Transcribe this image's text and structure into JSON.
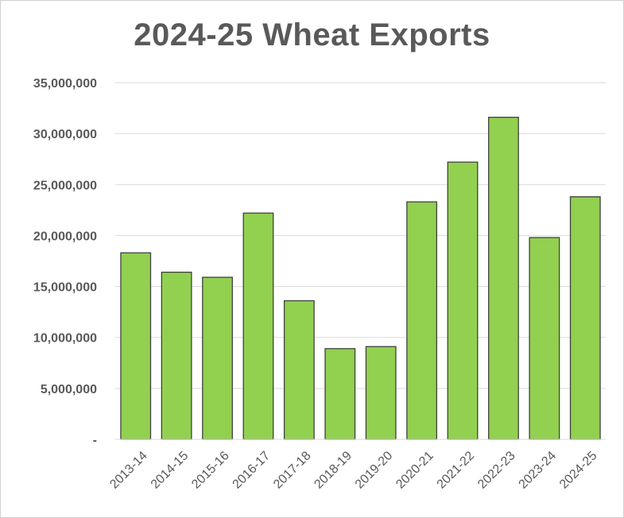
{
  "chart_data": {
    "type": "bar",
    "title": "2024-25 Wheat Exports",
    "xlabel": "",
    "ylabel": "",
    "categories": [
      "2013-14",
      "2014-15",
      "2015-16",
      "2016-17",
      "2017-18",
      "2018-19",
      "2019-20",
      "2020-21",
      "2021-22",
      "2022-23",
      "2023-24",
      "2024-25"
    ],
    "values": [
      18300000,
      16400000,
      15900000,
      22200000,
      13600000,
      8900000,
      9100000,
      23300000,
      27200000,
      31600000,
      19800000,
      23800000
    ],
    "ylim": [
      0,
      35000000
    ],
    "yticks": [
      0,
      5000000,
      10000000,
      15000000,
      20000000,
      25000000,
      30000000,
      35000000
    ],
    "ytick_labels": [
      "-",
      "5,000,000",
      "10,000,000",
      "15,000,000",
      "20,000,000",
      "25,000,000",
      "30,000,000",
      "35,000,000"
    ],
    "grid": true,
    "legend": "none",
    "bar_color": "#92d050",
    "bar_edge_color": "#404040",
    "grid_color": "#d9d9d9"
  }
}
